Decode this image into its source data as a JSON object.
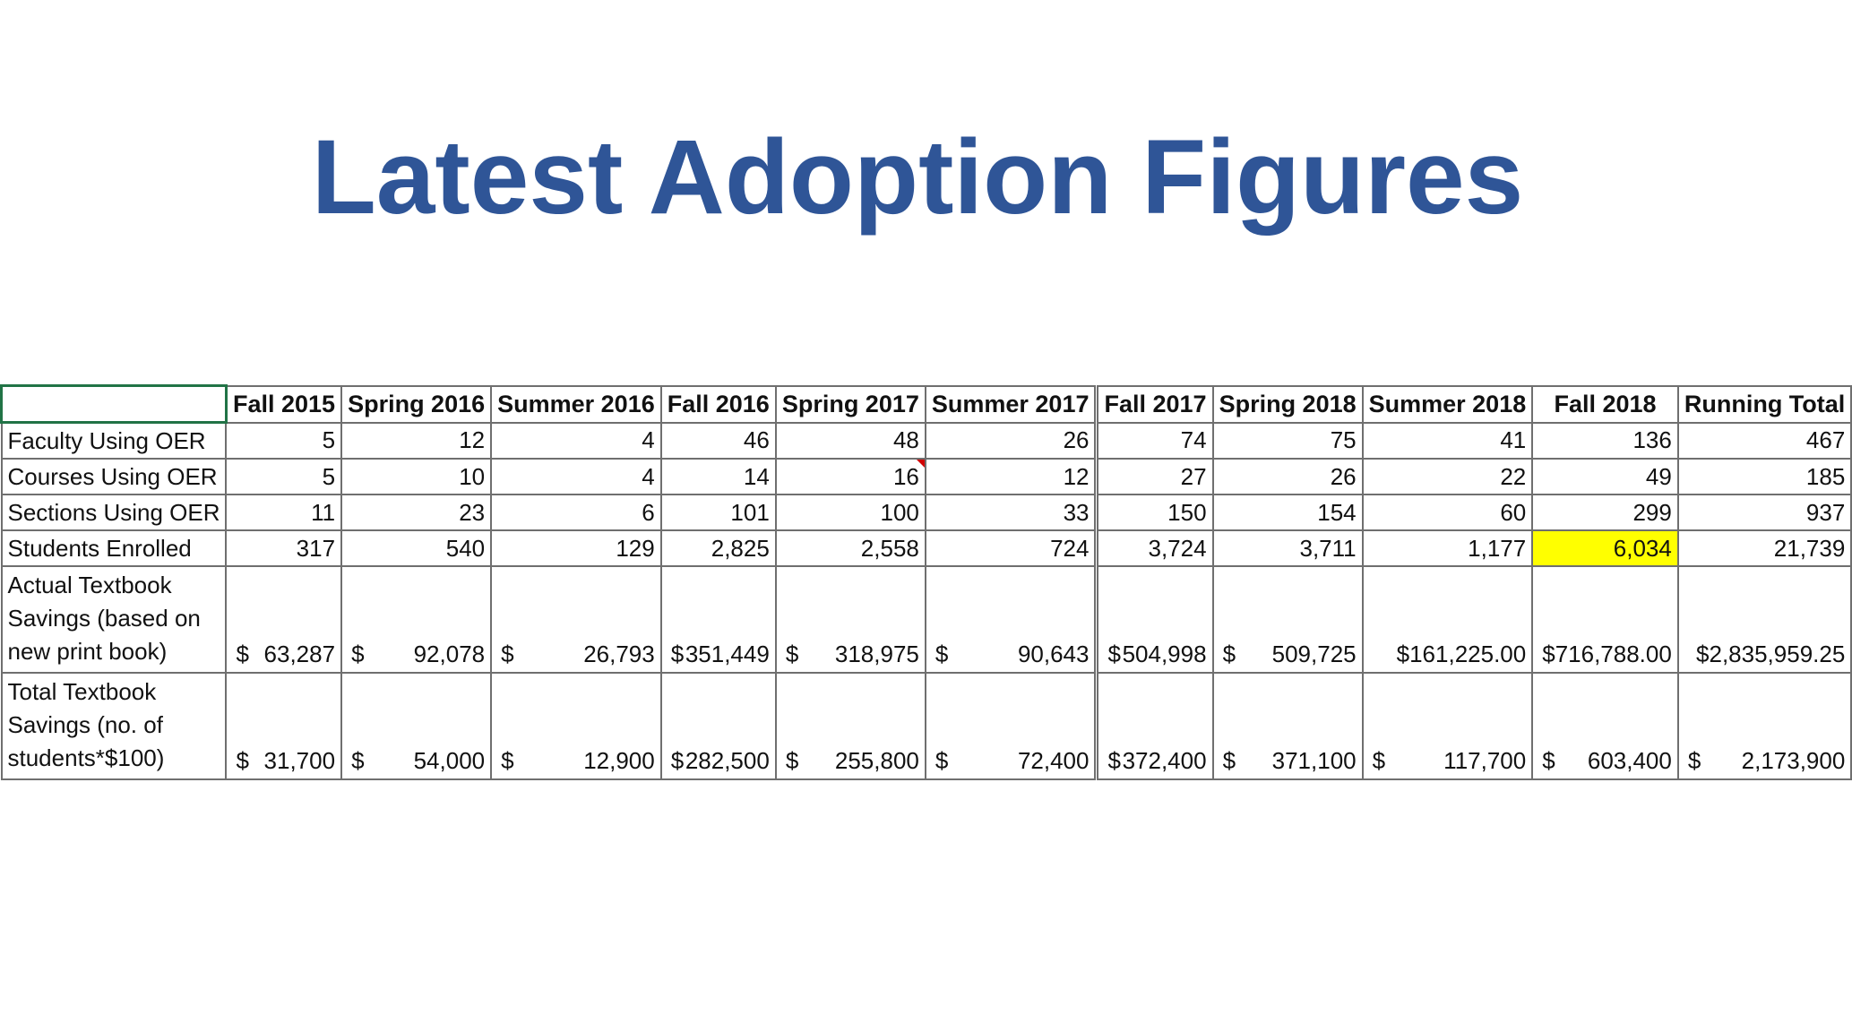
{
  "title": "Latest Adoption Figures",
  "table": {
    "columns": [
      "Fall 2015",
      "Spring 2016",
      "Summer 2016",
      "Fall 2016",
      "Spring 2017",
      "Summer 2017",
      "Fall 2017",
      "Spring 2018",
      "Summer 2018",
      "Fall 2018",
      "Running Total"
    ],
    "rows": {
      "faculty": {
        "label": "Faculty Using OER",
        "values": [
          "5",
          "12",
          "4",
          "46",
          "48",
          "26",
          "74",
          "75",
          "41",
          "136",
          "467"
        ]
      },
      "courses": {
        "label": "Courses Using OER",
        "values": [
          "5",
          "10",
          "4",
          "14",
          "16",
          "12",
          "27",
          "26",
          "22",
          "49",
          "185"
        ]
      },
      "sections": {
        "label": "Sections Using OER",
        "values": [
          "11",
          "23",
          "6",
          "101",
          "100",
          "33",
          "150",
          "154",
          "60",
          "299",
          "937"
        ]
      },
      "students": {
        "label": "Students Enrolled",
        "values": [
          "317",
          "540",
          "129",
          "2,825",
          "2,558",
          "724",
          "3,724",
          "3,711",
          "1,177",
          "6,034",
          "21,739"
        ]
      },
      "actual_savings": {
        "label": "Actual Textbook Savings (based on new print book)",
        "values": [
          "63,287",
          "92,078",
          "26,793",
          "351,449",
          "318,975",
          "90,643",
          "504,998",
          "509,725",
          "$161,225.00",
          "716,788.00",
          "$2,835,959.25"
        ]
      },
      "total_savings": {
        "label": " Total Textbook Savings (no. of students*$100)",
        "values": [
          "31,700",
          "54,000",
          "12,900",
          "282,500",
          "255,800",
          "72,400",
          "372,400",
          "371,100",
          "117,700",
          "603,400",
          "2,173,900"
        ]
      }
    },
    "currency_symbol": "$",
    "highlight_color": "#ffff00"
  },
  "colors": {
    "title": "#2f5597",
    "selected_cell_border": "#217346",
    "comment_marker": "#d00000"
  }
}
